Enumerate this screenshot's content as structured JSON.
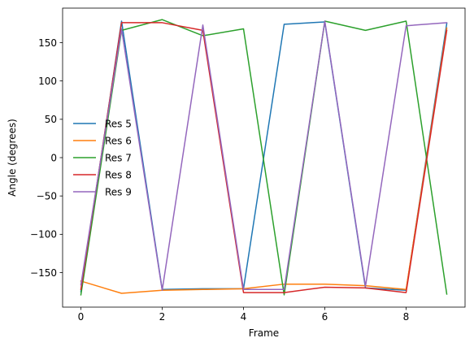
{
  "chart_data": {
    "type": "line",
    "xlabel": "Frame",
    "ylabel": "Angle (degrees)",
    "xlim": [
      -0.45,
      9.45
    ],
    "ylim": [
      -195,
      195
    ],
    "xticks": [
      0,
      2,
      4,
      6,
      8
    ],
    "yticks": [
      -150,
      -100,
      -50,
      0,
      50,
      100,
      150
    ],
    "grid": false,
    "legend_position": "center-left",
    "x": [
      0,
      1,
      2,
      3,
      4,
      5,
      6,
      7,
      8,
      9
    ],
    "series": [
      {
        "name": "Res 5",
        "color": "#1f77b4",
        "values": [
          -175,
          178,
          -172,
          -171,
          -171,
          174,
          177,
          -170,
          -173,
          175
        ]
      },
      {
        "name": "Res 6",
        "color": "#ff7f0e",
        "values": [
          -161,
          -177,
          -173,
          -172,
          -171,
          -165,
          -165,
          -167,
          -172,
          169
        ]
      },
      {
        "name": "Res 7",
        "color": "#2ca02c",
        "values": [
          -179,
          166,
          180,
          159,
          168,
          -179,
          178,
          166,
          178,
          -178
        ]
      },
      {
        "name": "Res 8",
        "color": "#d62728",
        "values": [
          -172,
          176,
          176,
          166,
          -176,
          -176,
          -169,
          -170,
          -176,
          166
        ]
      },
      {
        "name": "Res 9",
        "color": "#9467bd",
        "values": [
          -166,
          168,
          -173,
          173,
          -172,
          -172,
          178,
          -168,
          172,
          176
        ]
      }
    ]
  }
}
